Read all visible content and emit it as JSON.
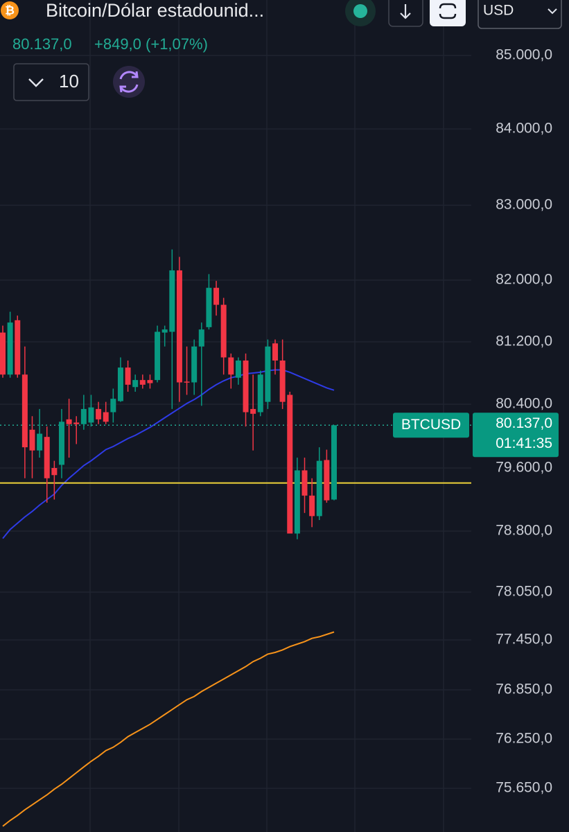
{
  "chart_data": {
    "type": "candlestick",
    "title": "Bitcoin/Dólar estadounid...",
    "last": {
      "value": 80137,
      "label": "80.137,0"
    },
    "change": "+849,0 (+1,07%)",
    "interval": "10",
    "currency": "USD",
    "symbol": "BTCUSD",
    "countdown": "01:41:35",
    "up_color": "#089981",
    "down_color": "#f23645",
    "open": [
      81320,
      80780,
      81480,
      80780,
      80080,
      79820,
      79990,
      79600,
      79640,
      80210,
      80170,
      80150,
      80170,
      80340,
      80300,
      80300,
      80440,
      80870,
      80620,
      80710,
      80710,
      80710,
      81320,
      81330,
      82130,
      80690,
      80680,
      81140,
      81390,
      81900,
      81680,
      81000,
      80740,
      80960,
      80340,
      80300,
      80430,
      81180,
      80960,
      80520,
      78770,
      79570,
      79250,
      78990,
      79700,
      79200
    ],
    "high": [
      81410,
      81590,
      81540,
      81140,
      80250,
      80340,
      80120,
      79690,
      80340,
      80470,
      80250,
      80520,
      80520,
      80430,
      80430,
      80600,
      81000,
      80960,
      80780,
      80780,
      80780,
      81410,
      81410,
      82410,
      82310,
      81140,
      81230,
      81450,
      82080,
      81990,
      81770,
      81050,
      81000,
      81050,
      80780,
      80830,
      81230,
      81230,
      81230,
      80560,
      79730,
      79730,
      79470,
      79860,
      79830,
      80137
    ],
    "low": [
      80740,
      80740,
      80740,
      79470,
      79470,
      79730,
      79160,
      79200,
      79470,
      79730,
      79900,
      80080,
      80120,
      80150,
      80150,
      80170,
      80430,
      80560,
      80560,
      80600,
      80600,
      80680,
      81140,
      80340,
      80430,
      80520,
      80520,
      80380,
      81360,
      81540,
      80780,
      80600,
      80650,
      80120,
      79820,
      80250,
      80340,
      80780,
      80340,
      78770,
      78700,
      79030,
      78850,
      78940,
      79160,
      79190
    ],
    "close": [
      80780,
      81450,
      80780,
      79860,
      79820,
      80030,
      79470,
      79510,
      80180,
      80150,
      80150,
      80340,
      80360,
      80210,
      80180,
      80470,
      80870,
      80650,
      80710,
      80650,
      80670,
      81330,
      81360,
      82130,
      80680,
      80680,
      81140,
      81360,
      81900,
      81680,
      81000,
      80780,
      80960,
      80300,
      80280,
      80780,
      81140,
      80960,
      80430,
      78770,
      79570,
      79250,
      78990,
      79690,
      79190,
      80137
    ],
    "series": [
      {
        "color": "#2e3be6",
        "values": [
          78710,
          78820,
          78900,
          78980,
          79050,
          79130,
          79200,
          79270,
          79380,
          79470,
          79550,
          79630,
          79690,
          79760,
          79830,
          79870,
          79920,
          79970,
          80010,
          80060,
          80110,
          80170,
          80230,
          80290,
          80350,
          80410,
          80460,
          80520,
          80590,
          80650,
          80700,
          80740,
          80760,
          80790,
          80800,
          80810,
          80830,
          80840,
          80840,
          80810,
          80770,
          80730,
          80690,
          80650,
          80610,
          80580
        ]
      },
      {
        "color": "#f7931a",
        "values": [
          75190,
          75260,
          75320,
          75390,
          75450,
          75510,
          75570,
          75640,
          75700,
          75770,
          75840,
          75910,
          75980,
          76040,
          76110,
          76150,
          76210,
          76280,
          76330,
          76380,
          76430,
          76490,
          76550,
          76610,
          76670,
          76730,
          76770,
          76830,
          76880,
          76930,
          76980,
          77030,
          77080,
          77130,
          77190,
          77230,
          77280,
          77300,
          77330,
          77370,
          77400,
          77430,
          77470,
          77490,
          77520,
          77550
        ]
      }
    ],
    "level": {
      "value": 79410,
      "color": "#f0d43a"
    },
    "ylim": [
      75120,
      85750
    ],
    "yticks": [
      {
        "value": 85000,
        "label": "85.000,0"
      },
      {
        "value": 84000,
        "label": "84.000,0"
      },
      {
        "value": 83000,
        "label": "83.000,0"
      },
      {
        "value": 82000,
        "label": "82.000,0"
      },
      {
        "value": 81200,
        "label": "81.200,0"
      },
      {
        "value": 80400,
        "label": "80.400,0"
      },
      {
        "value": 79600,
        "label": "79.600,0"
      },
      {
        "value": 78800,
        "label": "78.800,0"
      },
      {
        "value": 78050,
        "label": "78.050,0"
      },
      {
        "value": 77450,
        "label": "77.450,0"
      },
      {
        "value": 76850,
        "label": "76.850,0"
      },
      {
        "value": 76250,
        "label": "76.250,0"
      },
      {
        "value": 75650,
        "label": "75.650,0"
      }
    ],
    "grid": true
  }
}
